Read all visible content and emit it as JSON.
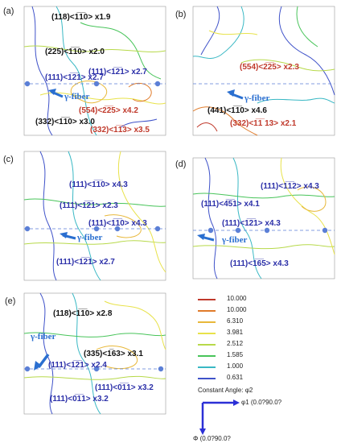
{
  "panels": {
    "a": {
      "label": "(a)",
      "fiber": "γ-fiber",
      "annotations": [
        {
          "text": "(118)<1̅1̅0> x1.9",
          "color": "black"
        },
        {
          "text": "(225)<1̅1̅0> x2.0",
          "color": "black"
        },
        {
          "text": "(111)<1̅2̅1> x2.7",
          "color": "blue"
        },
        {
          "text": "(111)<1̅2̅1> x2.7",
          "color": "blue"
        },
        {
          "text": "(554)<2̅2̅5> x4.2",
          "color": "red"
        },
        {
          "text": "(332)<1̅1̅0> x3.0",
          "color": "black"
        },
        {
          "text": "(332)<1̅1̅3> x3.5",
          "color": "red"
        }
      ]
    },
    "b": {
      "label": "(b)",
      "fiber": "γ-fiber",
      "annotations": [
        {
          "text": "(554)<2̅2̅5> x2.3",
          "color": "red"
        },
        {
          "text": "(441)<1̅1̅0> x4.6",
          "color": "black"
        },
        {
          "text": "(332)<1̅1̅ 13> x2.1",
          "color": "red"
        }
      ]
    },
    "c": {
      "label": "(c)",
      "fiber": "γ-fiber",
      "annotations": [
        {
          "text": "(111)<1̅1̅0> x4.3",
          "color": "blue"
        },
        {
          "text": "(111)<1̅2̅1> x2.3",
          "color": "blue"
        },
        {
          "text": "(111)<1̅1̅0> x4.3",
          "color": "blue"
        },
        {
          "text": "(111)<1̅2̅1> x2.7",
          "color": "blue"
        }
      ]
    },
    "d": {
      "label": "(d)",
      "fiber": "γ-fiber",
      "annotations": [
        {
          "text": "(111)<1̅1̅2> x4.3",
          "color": "blue"
        },
        {
          "text": "(111)<4̅5̅1> x4.1",
          "color": "blue"
        },
        {
          "text": "(111)<1̅2̅1> x4.3",
          "color": "blue"
        },
        {
          "text": "(111)<1̅6̅5> x4.3",
          "color": "blue"
        }
      ]
    },
    "e": {
      "label": "(e)",
      "fiber": "γ-fiber",
      "annotations": [
        {
          "text": "(118)<1̅1̅0> x2.8",
          "color": "black"
        },
        {
          "text": "(335)<1̅63> x3.1",
          "color": "black"
        },
        {
          "text": "(111)<1̅2̅1> x2.4",
          "color": "blue"
        },
        {
          "text": "(111)<0̅1̅1> x3.2",
          "color": "blue"
        },
        {
          "text": "(111)<0̅1̅1> x3.2",
          "color": "blue"
        }
      ]
    }
  },
  "legend": {
    "levels": [
      {
        "value": "10.000",
        "color": "#c0392b"
      },
      {
        "value": "10.000",
        "color": "#e07b2a"
      },
      {
        "value": "6.310",
        "color": "#e8b83a"
      },
      {
        "value": "3.981",
        "color": "#e8e24a"
      },
      {
        "value": "2.512",
        "color": "#b7d94a"
      },
      {
        "value": "1.585",
        "color": "#48c45a"
      },
      {
        "value": "1.000",
        "color": "#39b8c4"
      },
      {
        "value": "0.631",
        "color": "#3f52c9"
      }
    ],
    "caption": "Constant Angle: φ2",
    "phi1_axis": "φ1 (0.0?90.0?",
    "Phi_axis": "Φ (0.0?90.0?"
  }
}
